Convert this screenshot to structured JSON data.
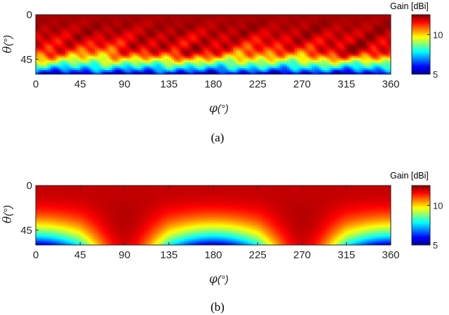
{
  "chart_data": [
    {
      "type": "heatmap",
      "caption": "(a)",
      "xlabel_symbol": "φ",
      "xlabel_unit": "(°)",
      "ylabel_symbol": "θ",
      "ylabel_unit": "(°)",
      "xlim": [
        0,
        360
      ],
      "ylim": [
        0,
        60
      ],
      "y_reversed": true,
      "x_ticks": [
        0,
        45,
        90,
        135,
        180,
        225,
        270,
        315,
        360
      ],
      "y_ticks": [
        0,
        45
      ],
      "colorbar": {
        "title": "Gain [dBi]",
        "min": 5,
        "max": 12.5,
        "ticks": [
          5,
          10
        ],
        "colormap": "jet"
      },
      "field": {
        "base_gain_at_theta0": 12.2,
        "edge_gain_at_theta60": 5.5,
        "pattern": "measured, ripple across phi with lobes near theta 35-45"
      }
    },
    {
      "type": "heatmap",
      "caption": "(b)",
      "xlabel_symbol": "φ",
      "xlabel_unit": "(°)",
      "ylabel_symbol": "θ",
      "ylabel_unit": "(°)",
      "xlim": [
        0,
        360
      ],
      "ylim": [
        0,
        60
      ],
      "y_reversed": true,
      "x_ticks": [
        0,
        45,
        90,
        135,
        180,
        225,
        270,
        315,
        360
      ],
      "y_ticks": [
        0,
        45
      ],
      "colorbar": {
        "title": "Gain [dBi]",
        "min": 5,
        "max": 12.5,
        "ticks": [
          5,
          10
        ],
        "colormap": "jet"
      },
      "field": {
        "base_gain_at_theta0": 12.0,
        "lobe_centers_phi": [
          90,
          270
        ],
        "lobe_center_theta": 45,
        "lobe_gain": 12.0,
        "min_gain_phi": [
          0,
          180,
          360
        ],
        "min_gain_at_theta60": 5.2,
        "pattern": "simulated, smooth"
      }
    }
  ]
}
